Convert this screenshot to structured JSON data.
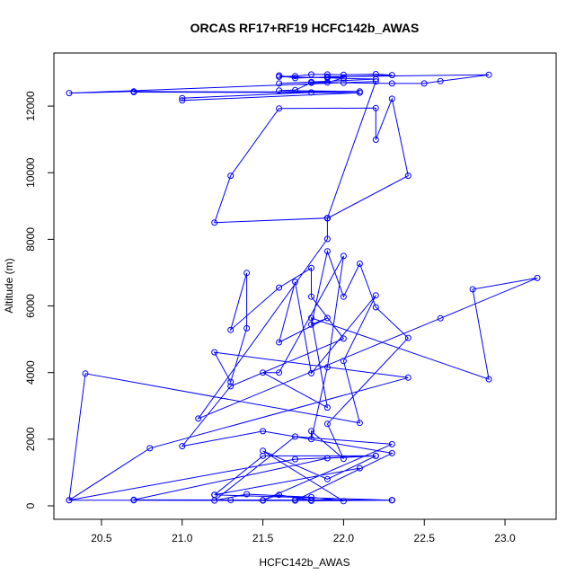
{
  "chart_data": {
    "type": "line",
    "title": "ORCAS RF17+RF19 HCFC142b_AWAS",
    "xlabel": "HCFC142b_AWAS",
    "ylabel": "Altitude (m)",
    "xlim": [
      20.3,
      23.2
    ],
    "ylim": [
      0,
      13000
    ],
    "xticks": [
      20.5,
      21.0,
      21.5,
      22.0,
      22.5,
      23.0
    ],
    "xtick_labels": [
      "20.5",
      "21.0",
      "21.5",
      "22.0",
      "22.5",
      "23.0"
    ],
    "yticks": [
      0,
      2000,
      4000,
      6000,
      8000,
      10000,
      12000
    ],
    "ytick_labels": [
      "0",
      "2000",
      "4000",
      "6000",
      "8000",
      "10000",
      "12000"
    ],
    "grid": false,
    "color": "#0000ff",
    "marker": "open-circle",
    "series": [
      {
        "x": [
          22.3,
          20.7,
          22.3,
          21.8,
          21.7,
          22.3,
          21.5,
          20.7,
          22.3,
          21.2,
          22.1,
          21.2,
          21.5,
          22.2,
          21.9,
          20.7,
          22.3,
          21.3,
          21.8,
          21.6,
          21.5,
          22.3,
          21.7,
          21.2,
          21.4,
          21.8,
          22.0,
          21.5,
          21.9,
          22.2,
          21.7,
          20.3,
          21.7,
          22.3,
          21.5,
          21.0,
          21.3,
          22.0,
          21.8,
          21.8,
          21.6,
          21.3,
          21.4,
          21.4,
          21.3,
          21.2,
          22.4,
          20.8,
          20.3,
          20.4,
          22.1,
          22.0,
          22.2,
          21.8,
          21.7,
          21.6,
          21.9,
          21.8,
          21.9,
          22.0,
          22.1,
          22.2,
          22.4,
          21.9,
          22.0,
          21.8,
          21.8,
          21.9,
          22.0,
          21.6,
          21.5,
          21.9,
          21.8,
          22.9,
          22.8,
          23.2,
          22.6,
          21.1,
          21.9,
          21.9,
          21.9,
          21.2,
          21.3,
          21.6,
          22.2,
          22.2,
          22.3,
          22.4,
          21.9,
          21.9,
          22.2,
          20.3,
          20.7,
          22.1,
          21.0,
          21.0,
          21.8,
          20.7,
          22.1,
          21.6,
          21.7,
          21.8,
          21.9,
          22.0,
          21.9,
          22.9,
          22.6,
          22.5,
          22.3,
          22.0,
          21.8,
          21.6,
          22.2,
          22.0,
          21.9,
          21.6,
          21.7,
          21.8,
          21.9,
          22.0,
          22.2,
          22.3,
          21.7,
          21.6
        ],
        "y": [
          170,
          170,
          170,
          150,
          180,
          170,
          160,
          170,
          170,
          330,
          1130,
          330,
          1500,
          1500,
          1430,
          180,
          170,
          170,
          170,
          330,
          170,
          1850,
          2080,
          160,
          350,
          260,
          140,
          1650,
          800,
          1500,
          1400,
          170,
          160,
          1580,
          2240,
          1790,
          3590,
          5020,
          6280,
          7140,
          6550,
          5280,
          6990,
          5330,
          3720,
          4610,
          3850,
          1730,
          170,
          3970,
          2490,
          4350,
          6320,
          3980,
          6720,
          4910,
          5640,
          5440,
          7640,
          6280,
          7270,
          5960,
          5040,
          2460,
          1410,
          2240,
          2000,
          4160,
          7500,
          4000,
          4000,
          2950,
          5640,
          3800,
          6500,
          6840,
          5630,
          2620,
          8010,
          8630,
          8640,
          8500,
          9910,
          11930,
          11940,
          10990,
          12220,
          9910,
          8630,
          8640,
          12740,
          12390,
          12440,
          12400,
          12170,
          12240,
          12410,
          12420,
          12440,
          12470,
          12480,
          12700,
          12710,
          12850,
          12880,
          12940,
          12750,
          12680,
          12680,
          12700,
          12720,
          12680,
          12810,
          12830,
          12850,
          12880,
          12900,
          12950,
          12950,
          12940,
          12960,
          12930,
          12840,
          12920
        ]
      }
    ]
  }
}
